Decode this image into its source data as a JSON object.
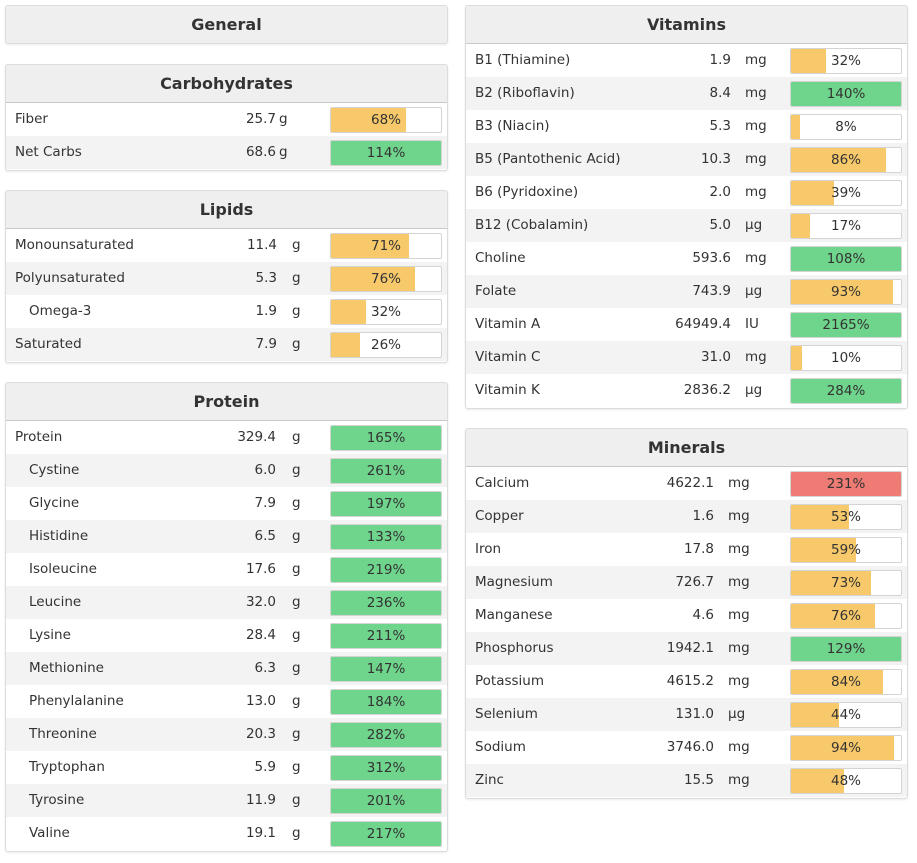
{
  "general": {
    "title": "General"
  },
  "carbohydrates": {
    "title": "Carbohydrates",
    "rows": [
      {
        "name": "Fiber",
        "amount": "25.7",
        "unit": "g",
        "pct_label": "68%",
        "pct": 68,
        "color": "orange",
        "indent": false
      },
      {
        "name": "Net Carbs",
        "amount": "68.6",
        "unit": "g",
        "pct_label": "114%",
        "pct": 114,
        "color": "green",
        "indent": false
      }
    ]
  },
  "lipids": {
    "title": "Lipids",
    "rows": [
      {
        "name": "Monounsaturated",
        "amount": "11.4",
        "unit": "g",
        "pct_label": "71%",
        "pct": 71,
        "color": "orange",
        "indent": false
      },
      {
        "name": "Polyunsaturated",
        "amount": "5.3",
        "unit": "g",
        "pct_label": "76%",
        "pct": 76,
        "color": "orange",
        "indent": false
      },
      {
        "name": "Omega-3",
        "amount": "1.9",
        "unit": "g",
        "pct_label": "32%",
        "pct": 32,
        "color": "orange",
        "indent": true
      },
      {
        "name": "Saturated",
        "amount": "7.9",
        "unit": "g",
        "pct_label": "26%",
        "pct": 26,
        "color": "orange",
        "indent": false
      }
    ]
  },
  "protein": {
    "title": "Protein",
    "rows": [
      {
        "name": "Protein",
        "amount": "329.4",
        "unit": "g",
        "pct_label": "165%",
        "pct": 165,
        "color": "green",
        "indent": false
      },
      {
        "name": "Cystine",
        "amount": "6.0",
        "unit": "g",
        "pct_label": "261%",
        "pct": 261,
        "color": "green",
        "indent": true
      },
      {
        "name": "Glycine",
        "amount": "7.9",
        "unit": "g",
        "pct_label": "197%",
        "pct": 197,
        "color": "green",
        "indent": true
      },
      {
        "name": "Histidine",
        "amount": "6.5",
        "unit": "g",
        "pct_label": "133%",
        "pct": 133,
        "color": "green",
        "indent": true
      },
      {
        "name": "Isoleucine",
        "amount": "17.6",
        "unit": "g",
        "pct_label": "219%",
        "pct": 219,
        "color": "green",
        "indent": true
      },
      {
        "name": "Leucine",
        "amount": "32.0",
        "unit": "g",
        "pct_label": "236%",
        "pct": 236,
        "color": "green",
        "indent": true
      },
      {
        "name": "Lysine",
        "amount": "28.4",
        "unit": "g",
        "pct_label": "211%",
        "pct": 211,
        "color": "green",
        "indent": true
      },
      {
        "name": "Methionine",
        "amount": "6.3",
        "unit": "g",
        "pct_label": "147%",
        "pct": 147,
        "color": "green",
        "indent": true
      },
      {
        "name": "Phenylalanine",
        "amount": "13.0",
        "unit": "g",
        "pct_label": "184%",
        "pct": 184,
        "color": "green",
        "indent": true
      },
      {
        "name": "Threonine",
        "amount": "20.3",
        "unit": "g",
        "pct_label": "282%",
        "pct": 282,
        "color": "green",
        "indent": true
      },
      {
        "name": "Tryptophan",
        "amount": "5.9",
        "unit": "g",
        "pct_label": "312%",
        "pct": 312,
        "color": "green",
        "indent": true
      },
      {
        "name": "Tyrosine",
        "amount": "11.9",
        "unit": "g",
        "pct_label": "201%",
        "pct": 201,
        "color": "green",
        "indent": true
      },
      {
        "name": "Valine",
        "amount": "19.1",
        "unit": "g",
        "pct_label": "217%",
        "pct": 217,
        "color": "green",
        "indent": true
      }
    ]
  },
  "vitamins": {
    "title": "Vitamins",
    "rows": [
      {
        "name": "B1 (Thiamine)",
        "amount": "1.9",
        "unit": "mg",
        "pct_label": "32%",
        "pct": 32,
        "color": "orange"
      },
      {
        "name": "B2 (Riboflavin)",
        "amount": "8.4",
        "unit": "mg",
        "pct_label": "140%",
        "pct": 140,
        "color": "green"
      },
      {
        "name": "B3 (Niacin)",
        "amount": "5.3",
        "unit": "mg",
        "pct_label": "8%",
        "pct": 8,
        "color": "orange"
      },
      {
        "name": "B5 (Pantothenic Acid)",
        "amount": "10.3",
        "unit": "mg",
        "pct_label": "86%",
        "pct": 86,
        "color": "orange"
      },
      {
        "name": "B6 (Pyridoxine)",
        "amount": "2.0",
        "unit": "mg",
        "pct_label": "39%",
        "pct": 39,
        "color": "orange"
      },
      {
        "name": "B12 (Cobalamin)",
        "amount": "5.0",
        "unit": "µg",
        "pct_label": "17%",
        "pct": 17,
        "color": "orange"
      },
      {
        "name": "Choline",
        "amount": "593.6",
        "unit": "mg",
        "pct_label": "108%",
        "pct": 108,
        "color": "green"
      },
      {
        "name": "Folate",
        "amount": "743.9",
        "unit": "µg",
        "pct_label": "93%",
        "pct": 93,
        "color": "orange"
      },
      {
        "name": "Vitamin A",
        "amount": "64949.4",
        "unit": "IU",
        "pct_label": "2165%",
        "pct": 2165,
        "color": "green"
      },
      {
        "name": "Vitamin C",
        "amount": "31.0",
        "unit": "mg",
        "pct_label": "10%",
        "pct": 10,
        "color": "orange"
      },
      {
        "name": "Vitamin K",
        "amount": "2836.2",
        "unit": "µg",
        "pct_label": "284%",
        "pct": 284,
        "color": "green"
      }
    ]
  },
  "minerals": {
    "title": "Minerals",
    "rows": [
      {
        "name": "Calcium",
        "amount": "4622.1",
        "unit": "mg",
        "pct_label": "231%",
        "pct": 231,
        "color": "red"
      },
      {
        "name": "Copper",
        "amount": "1.6",
        "unit": "mg",
        "pct_label": "53%",
        "pct": 53,
        "color": "orange"
      },
      {
        "name": "Iron",
        "amount": "17.8",
        "unit": "mg",
        "pct_label": "59%",
        "pct": 59,
        "color": "orange"
      },
      {
        "name": "Magnesium",
        "amount": "726.7",
        "unit": "mg",
        "pct_label": "73%",
        "pct": 73,
        "color": "orange"
      },
      {
        "name": "Manganese",
        "amount": "4.6",
        "unit": "mg",
        "pct_label": "76%",
        "pct": 76,
        "color": "orange"
      },
      {
        "name": "Phosphorus",
        "amount": "1942.1",
        "unit": "mg",
        "pct_label": "129%",
        "pct": 129,
        "color": "green"
      },
      {
        "name": "Potassium",
        "amount": "4615.2",
        "unit": "mg",
        "pct_label": "84%",
        "pct": 84,
        "color": "orange"
      },
      {
        "name": "Selenium",
        "amount": "131.0",
        "unit": "µg",
        "pct_label": "44%",
        "pct": 44,
        "color": "orange"
      },
      {
        "name": "Sodium",
        "amount": "3746.0",
        "unit": "mg",
        "pct_label": "94%",
        "pct": 94,
        "color": "orange"
      },
      {
        "name": "Zinc",
        "amount": "15.5",
        "unit": "mg",
        "pct_label": "48%",
        "pct": 48,
        "color": "orange"
      }
    ]
  },
  "colors": {
    "orange": "#f7c96a",
    "green": "#6fd48c",
    "red": "#ee7b74"
  }
}
